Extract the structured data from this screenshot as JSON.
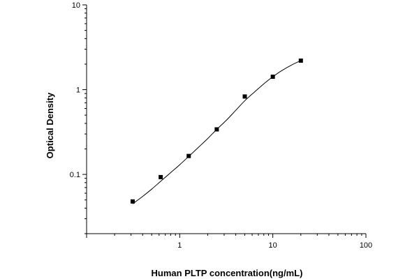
{
  "chart_data": {
    "type": "scatter",
    "title": "",
    "xlabel": "Human PLTP concentration(ng/mL)",
    "ylabel": "Optical Density",
    "x_scale": "log",
    "y_scale": "log",
    "xlim": [
      0.1,
      100
    ],
    "ylim": [
      0.02,
      10
    ],
    "x_ticks": [
      1,
      10,
      100
    ],
    "x_tick_labels": [
      "1",
      "10",
      "100"
    ],
    "y_ticks": [
      0.1,
      1,
      10
    ],
    "y_tick_labels": [
      "0.1",
      "1",
      "10"
    ],
    "grid": false,
    "legend": "none",
    "series": [
      {
        "x": [
          0.3125,
          0.625,
          1.25,
          2.5,
          5,
          10,
          20
        ],
        "y": [
          0.048,
          0.093,
          0.165,
          0.34,
          0.83,
          1.42,
          2.2
        ]
      }
    ],
    "fit_curve": {
      "x": [
        0.3125,
        0.4,
        0.5,
        0.625,
        0.8,
        1.0,
        1.25,
        1.6,
        2.0,
        2.5,
        3.2,
        4.0,
        5.0,
        6.3,
        8.0,
        10,
        12.5,
        16,
        20
      ],
      "y": [
        0.045,
        0.055,
        0.067,
        0.083,
        0.105,
        0.13,
        0.163,
        0.21,
        0.265,
        0.34,
        0.44,
        0.57,
        0.74,
        0.93,
        1.17,
        1.42,
        1.68,
        1.96,
        2.2
      ]
    },
    "colors": {
      "marker": "#000000",
      "line": "#000000",
      "axis": "#000000"
    }
  }
}
